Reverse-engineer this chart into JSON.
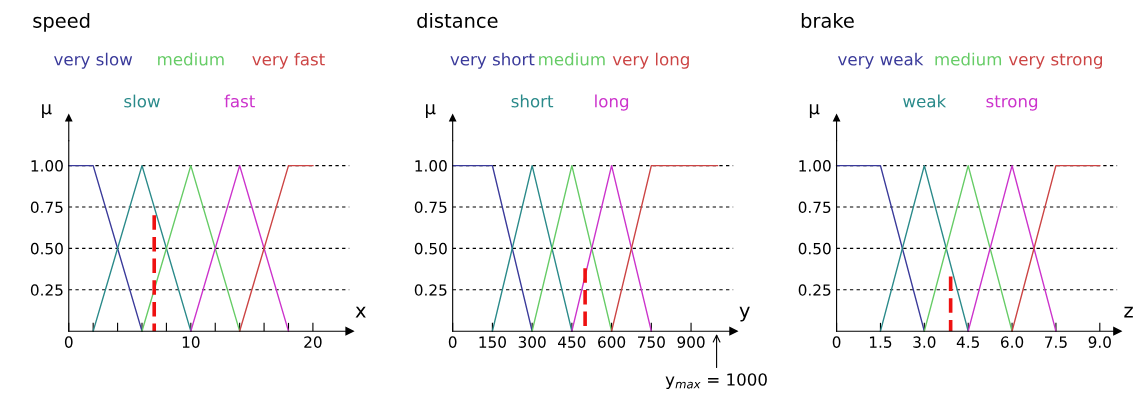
{
  "chart_data": [
    {
      "type": "line",
      "title": "speed",
      "xlabel": "x",
      "ylabel": "μ",
      "grid": "y",
      "line_style": "solid",
      "legend": false,
      "xlim": [
        0,
        23
      ],
      "ylim": [
        0,
        1.15
      ],
      "xticks": [
        {
          "value": 0,
          "label": "0"
        },
        {
          "value": 2,
          "label": null
        },
        {
          "value": 4,
          "label": null
        },
        {
          "value": 6,
          "label": null
        },
        {
          "value": 8,
          "label": null
        },
        {
          "value": 10,
          "label": "10"
        },
        {
          "value": 12,
          "label": null
        },
        {
          "value": 14,
          "label": null
        },
        {
          "value": 16,
          "label": null
        },
        {
          "value": 18,
          "label": null
        },
        {
          "value": 20,
          "label": "20"
        }
      ],
      "yticks": [
        {
          "value": 0.25,
          "label": "0.25"
        },
        {
          "value": 0.5,
          "label": "0.50"
        },
        {
          "value": 0.75,
          "label": "0.75"
        },
        {
          "value": 1.0,
          "label": "1.00"
        }
      ],
      "series": [
        {
          "name": "very slow",
          "color": "#3a3a9a",
          "x": [
            0,
            2,
            6
          ],
          "values": [
            1,
            1,
            0
          ]
        },
        {
          "name": "slow",
          "color": "#2a8a8a",
          "x": [
            2,
            6,
            10
          ],
          "values": [
            0,
            1,
            0
          ]
        },
        {
          "name": "medium",
          "color": "#66cc66",
          "x": [
            6,
            10,
            14
          ],
          "values": [
            0,
            1,
            0
          ]
        },
        {
          "name": "fast",
          "color": "#cc33cc",
          "x": [
            10,
            14,
            18
          ],
          "values": [
            0,
            1,
            0
          ]
        },
        {
          "name": "very fast",
          "color": "#cc4444",
          "x": [
            14,
            18,
            20
          ],
          "values": [
            0,
            1,
            1
          ]
        },
        {
          "color": "#ee1111",
          "line_style": "dashed",
          "x": [
            7,
            7
          ],
          "values": [
            0.7,
            0
          ]
        }
      ]
    },
    {
      "type": "line",
      "title": "distance",
      "xlabel": "y",
      "ylabel": "μ",
      "grid": "y",
      "line_style": "solid",
      "legend": false,
      "xlim": [
        0,
        1060
      ],
      "ylim": [
        0,
        1.15
      ],
      "xticks": [
        {
          "value": 0,
          "label": "0"
        },
        150,
        300,
        450,
        600,
        750,
        900
      ],
      "yticks": [
        {
          "value": 0.25,
          "label": "0.25"
        },
        {
          "value": 0.5,
          "label": "0.50"
        },
        {
          "value": 0.75,
          "label": "0.75"
        },
        {
          "value": 1.0,
          "label": "1.00"
        }
      ],
      "annotations": [
        "y$_{max}$ = 1000"
      ],
      "series": [
        {
          "name": "very short",
          "color": "#3a3a9a",
          "x": [
            0,
            150,
            300
          ],
          "values": [
            1,
            1,
            0
          ]
        },
        {
          "name": "short",
          "color": "#2a8a8a",
          "x": [
            150,
            300,
            450
          ],
          "values": [
            0,
            1,
            0
          ]
        },
        {
          "name": "medium",
          "color": "#66cc66",
          "x": [
            300,
            450,
            600
          ],
          "values": [
            0,
            1,
            0
          ]
        },
        {
          "name": "long",
          "color": "#cc33cc",
          "x": [
            450,
            600,
            750
          ],
          "values": [
            0,
            1,
            0
          ]
        },
        {
          "name": "very long",
          "color": "#cc4444",
          "x": [
            600,
            750,
            1000
          ],
          "values": [
            0,
            1,
            1
          ]
        },
        {
          "color": "#ee1111",
          "line_style": "dashed",
          "x": [
            500,
            500
          ],
          "values": [
            0.38,
            0
          ]
        }
      ]
    },
    {
      "type": "line",
      "title": "brake",
      "xlabel": "z",
      "ylabel": "μ",
      "grid": "y",
      "line_style": "solid",
      "legend": false,
      "xlim": [
        0,
        9.6
      ],
      "ylim": [
        0,
        1.15
      ],
      "xticks": [
        {
          "value": 0,
          "label": "0"
        },
        {
          "value": 1.5,
          "label": "1.5"
        },
        {
          "value": 3,
          "label": "3.0"
        },
        {
          "value": 4.5,
          "label": "4.5"
        },
        {
          "value": 6,
          "label": "6.0"
        },
        {
          "value": 7.5,
          "label": "7.5"
        },
        {
          "value": 9,
          "label": "9.0"
        }
      ],
      "yticks": [
        {
          "value": 0.25,
          "label": "0.25"
        },
        {
          "value": 0.5,
          "label": "0.50"
        },
        {
          "value": 0.75,
          "label": "0.75"
        },
        {
          "value": 1.0,
          "label": "1.00"
        }
      ],
      "series": [
        {
          "name": "very weak",
          "color": "#3a3a9a",
          "x": [
            0,
            1.5,
            3
          ],
          "values": [
            1,
            1,
            0
          ]
        },
        {
          "name": "weak",
          "color": "#2a8a8a",
          "x": [
            1.5,
            3,
            4.5
          ],
          "values": [
            0,
            1,
            0
          ]
        },
        {
          "name": "medium",
          "color": "#66cc66",
          "x": [
            3,
            4.5,
            6
          ],
          "values": [
            0,
            1,
            0
          ]
        },
        {
          "name": "strong",
          "color": "#cc33cc",
          "x": [
            4.5,
            6,
            7.5
          ],
          "values": [
            0,
            1,
            0
          ]
        },
        {
          "name": "very strong",
          "color": "#cc4444",
          "x": [
            6,
            7.5,
            9
          ],
          "values": [
            0,
            1,
            1
          ]
        },
        {
          "color": "#ee1111",
          "line_style": "dashed",
          "x": [
            3.9,
            3.9
          ],
          "values": [
            0.33,
            0
          ]
        }
      ]
    }
  ]
}
